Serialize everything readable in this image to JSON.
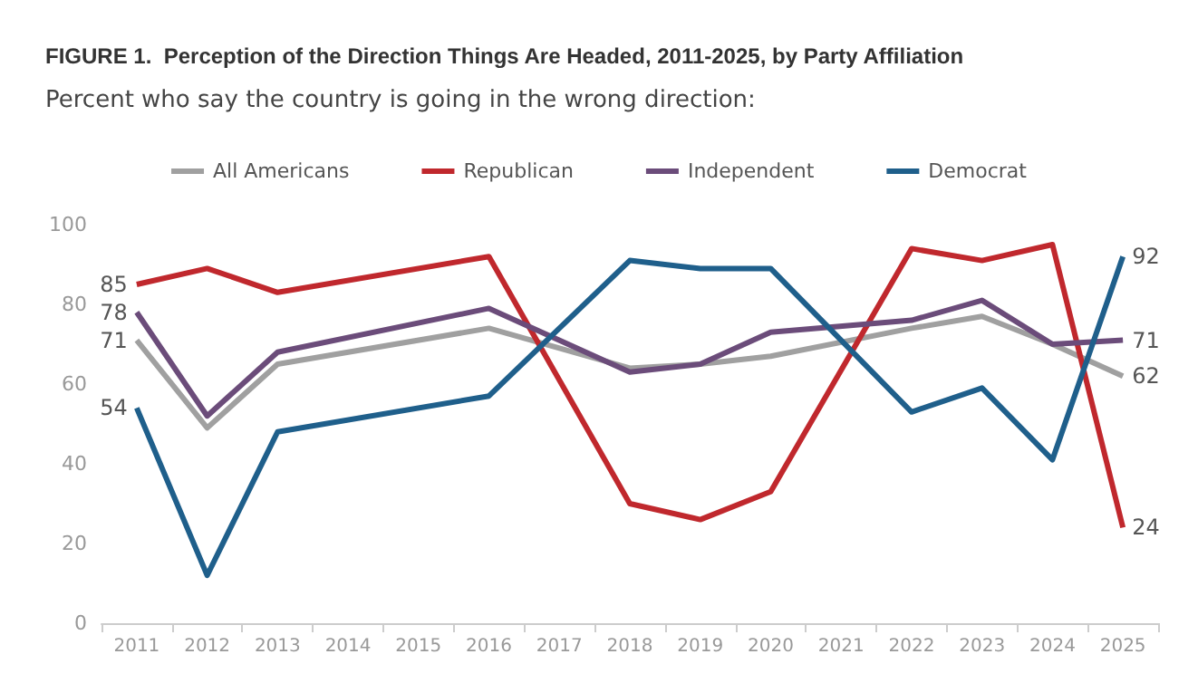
{
  "chart_data": {
    "type": "line",
    "title": "FIGURE 1.  Perception of the Direction Things Are Headed, 2011-2025, by Party Affiliation",
    "subtitle": "Percent who say the country is going in the wrong direction:",
    "categories": [
      "2011",
      "2012",
      "2013",
      "2014",
      "2015",
      "2016",
      "2017",
      "2018",
      "2019",
      "2020",
      "2021",
      "2022",
      "2023",
      "2024",
      "2025"
    ],
    "series": [
      {
        "name": "All Americans",
        "color": "#a0a0a0",
        "values": [
          71,
          49,
          65,
          null,
          null,
          74,
          null,
          64,
          65,
          67,
          null,
          74,
          77,
          70,
          62
        ],
        "value_labels": [
          "71",
          null,
          null,
          null,
          null,
          null,
          null,
          null,
          null,
          null,
          null,
          null,
          null,
          null,
          "62"
        ]
      },
      {
        "name": "Republican",
        "color": "#c0282d",
        "values": [
          85,
          89,
          83,
          null,
          null,
          92,
          null,
          30,
          26,
          33,
          null,
          94,
          91,
          95,
          24
        ],
        "value_labels": [
          "85",
          null,
          null,
          null,
          null,
          null,
          null,
          null,
          null,
          null,
          null,
          null,
          null,
          null,
          "24"
        ]
      },
      {
        "name": "Independent",
        "color": "#6b4c7a",
        "values": [
          78,
          52,
          68,
          null,
          null,
          79,
          null,
          63,
          65,
          73,
          null,
          76,
          81,
          70,
          71
        ],
        "value_labels": [
          "78",
          null,
          null,
          null,
          null,
          null,
          null,
          null,
          null,
          null,
          null,
          null,
          null,
          null,
          "71"
        ]
      },
      {
        "name": "Democrat",
        "color": "#1f5f8b",
        "values": [
          54,
          12,
          48,
          null,
          null,
          57,
          null,
          91,
          89,
          89,
          null,
          53,
          59,
          41,
          92
        ],
        "value_labels": [
          "54",
          null,
          null,
          null,
          null,
          null,
          null,
          null,
          null,
          null,
          null,
          null,
          null,
          null,
          "92"
        ]
      }
    ],
    "ylim": [
      0,
      100
    ],
    "yticks": [
      0,
      20,
      40,
      60,
      80,
      100
    ],
    "grid": false,
    "legend": "top",
    "marker": "none",
    "line_style": "solid"
  }
}
